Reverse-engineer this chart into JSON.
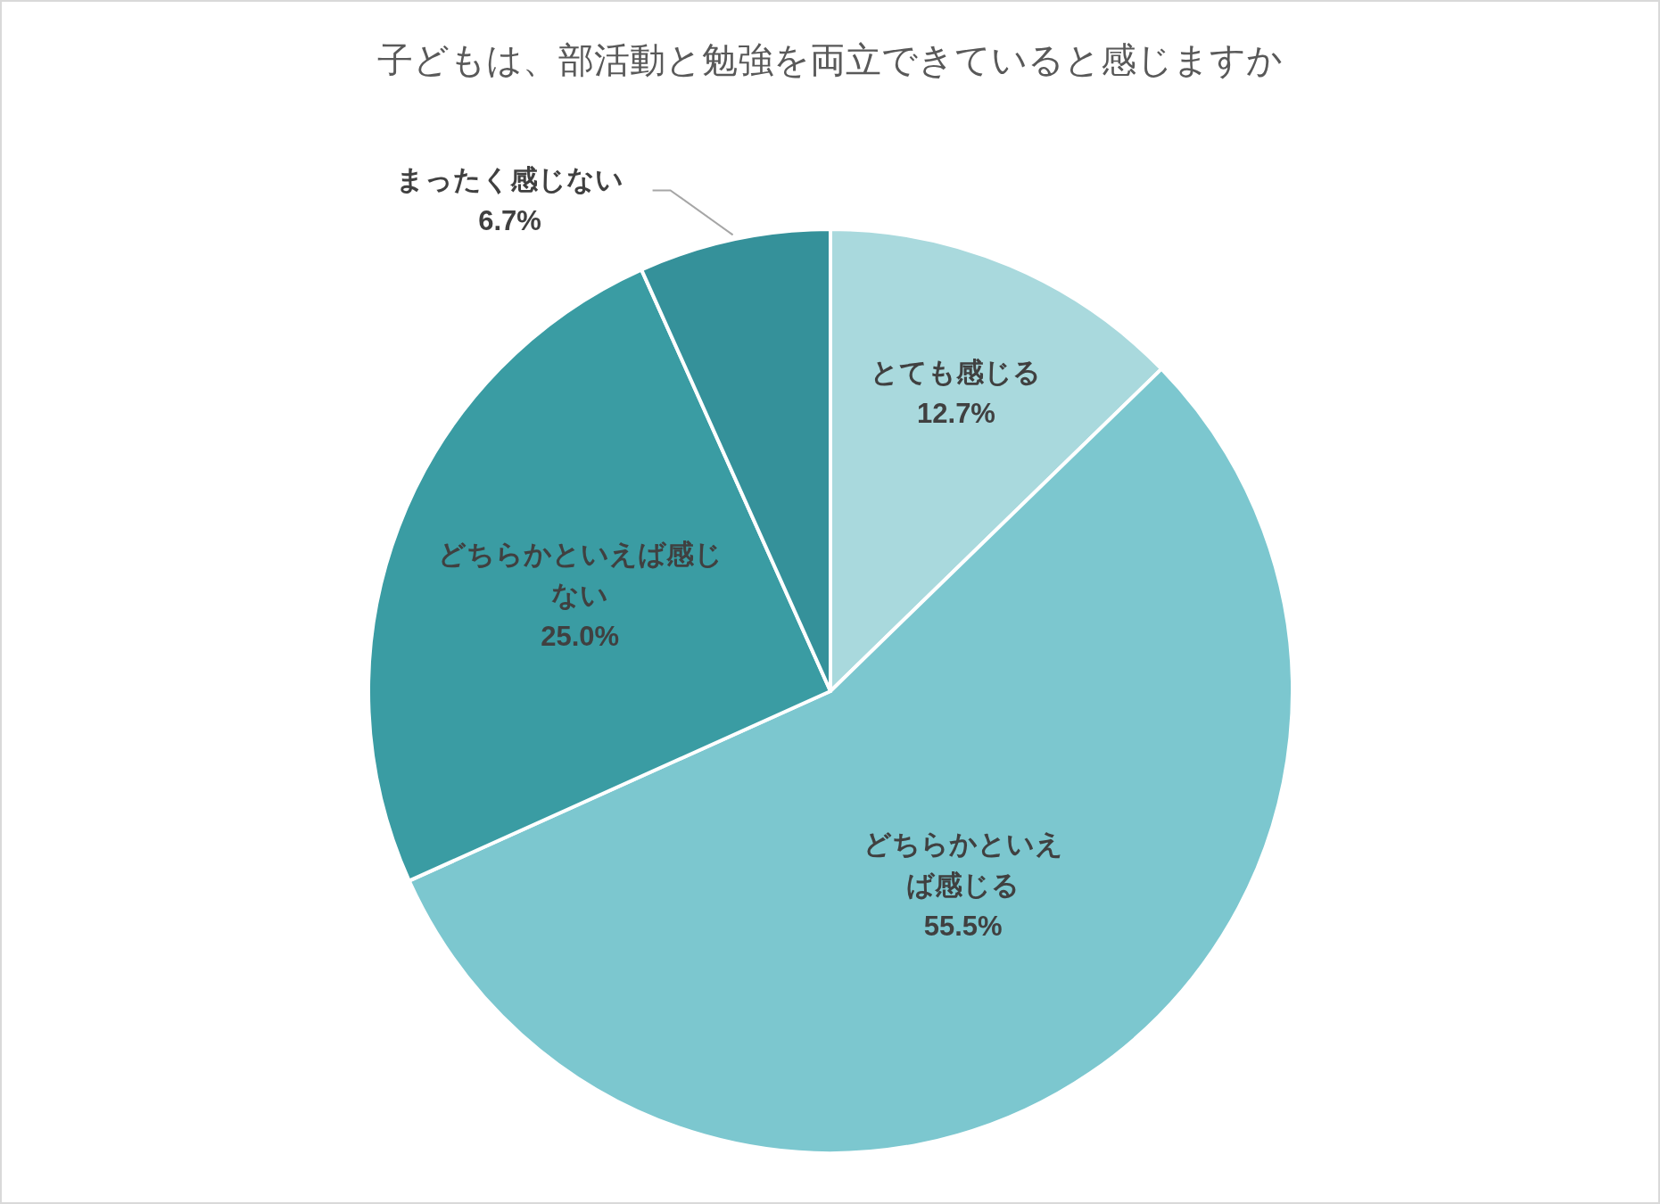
{
  "chart_data": {
    "type": "pie",
    "title": "子どもは、部活動と勉強を両立できていると感じますか",
    "categories": [
      "とても感じる",
      "どちらかといえば感じる",
      "どちらかといえば感じない",
      "まったく感じない"
    ],
    "values": [
      12.7,
      55.5,
      25.0,
      6.7
    ],
    "value_labels": [
      "12.7%",
      "55.5%",
      "25.0%",
      "6.7%"
    ],
    "colors": [
      "#a9d9dd",
      "#7cc7cf",
      "#3a9ca3",
      "#35919a"
    ]
  }
}
